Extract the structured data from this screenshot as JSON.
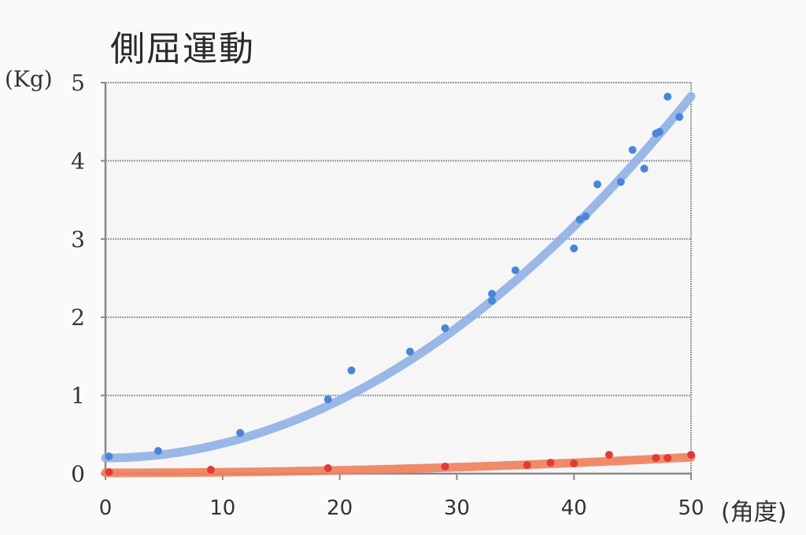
{
  "chart_data": {
    "type": "scatter",
    "title": "側屈運動",
    "ylabel": "(Kg)",
    "xlabel": "(角度)",
    "xlim": [
      0,
      50
    ],
    "ylim": [
      0,
      5
    ],
    "x_ticks": [
      0,
      10,
      20,
      30,
      40,
      50
    ],
    "y_ticks": [
      0,
      1,
      2,
      3,
      4,
      5
    ],
    "grid": true,
    "legend": "none",
    "series": [
      {
        "color": "#4a86d8",
        "trend_color": "#8fb0e6",
        "points": [
          [
            0.3,
            0.22
          ],
          [
            4.5,
            0.29
          ],
          [
            11.5,
            0.52
          ],
          [
            19,
            0.95
          ],
          [
            21,
            1.32
          ],
          [
            26,
            1.56
          ],
          [
            29,
            1.86
          ],
          [
            33,
            2.21
          ],
          [
            33,
            2.3
          ],
          [
            35,
            2.6
          ],
          [
            40,
            2.88
          ],
          [
            40.5,
            3.25
          ],
          [
            41,
            3.29
          ],
          [
            42,
            3.7
          ],
          [
            44,
            3.73
          ],
          [
            45,
            4.14
          ],
          [
            46,
            3.9
          ],
          [
            47,
            4.35
          ],
          [
            47.3,
            4.37
          ],
          [
            48,
            4.82
          ],
          [
            49,
            4.56
          ]
        ],
        "trend": [
          0.2,
          0.00185
        ]
      },
      {
        "color": "#e03a3a",
        "trend_color": "#f0805a",
        "points": [
          [
            0.3,
            0.02
          ],
          [
            9,
            0.05
          ],
          [
            19,
            0.07
          ],
          [
            29,
            0.09
          ],
          [
            36,
            0.11
          ],
          [
            38,
            0.14
          ],
          [
            40,
            0.13
          ],
          [
            43,
            0.24
          ],
          [
            47,
            0.2
          ],
          [
            48,
            0.2
          ],
          [
            50,
            0.24
          ]
        ],
        "trend": [
          0.01,
          8e-05
        ]
      }
    ]
  }
}
